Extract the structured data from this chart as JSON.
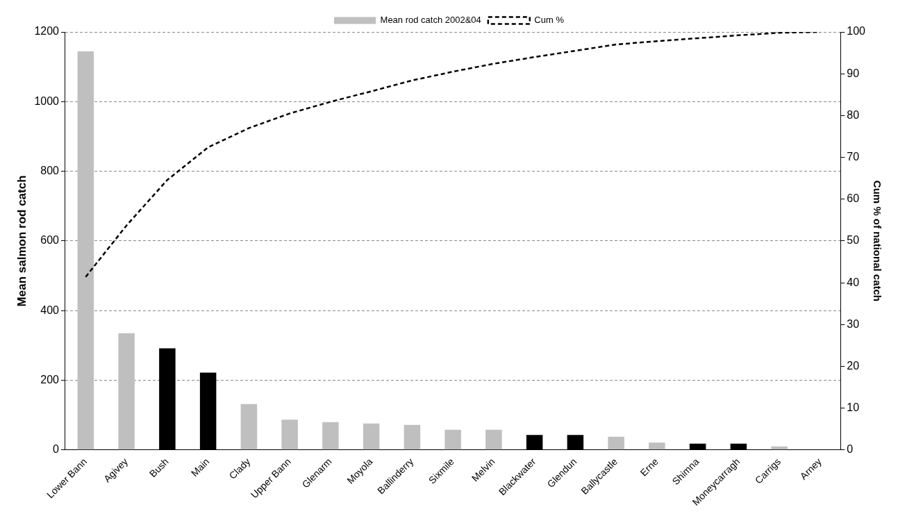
{
  "chart_data": {
    "type": "bar",
    "categories": [
      "Lower Bann",
      "Agivey",
      "Bush",
      "Main",
      "Clady",
      "Upper Bann",
      "Glenarm",
      "Moyola",
      "Ballinderry",
      "Sixmile",
      "Melvin",
      "Blackwater",
      "Glendun",
      "Ballycastle",
      "Erne",
      "Shimna",
      "Moneycarragh",
      "Carrigs",
      "Arney"
    ],
    "series": [
      {
        "name": "Mean rod catch 2002&04",
        "color": "#bfbfbf",
        "colors": [
          "#bfbfbf",
          "#bfbfbf",
          "#000000",
          "#000000",
          "#bfbfbf",
          "#bfbfbf",
          "#bfbfbf",
          "#bfbfbf",
          "#bfbfbf",
          "#bfbfbf",
          "#bfbfbf",
          "#000000",
          "#000000",
          "#bfbfbf",
          "#bfbfbf",
          "#000000",
          "#000000",
          "#bfbfbf",
          "#bfbfbf"
        ],
        "values": [
          1144,
          335,
          292,
          222,
          132,
          87,
          80,
          76,
          72,
          58,
          58,
          43,
          43,
          38,
          21,
          18,
          18,
          10,
          1
        ]
      },
      {
        "name": "Cum %",
        "type": "line",
        "axis": "y2",
        "color": "#000000",
        "line_style": "dashed",
        "marker": "none",
        "values": [
          41.4,
          53.7,
          64.6,
          72.4,
          77,
          80.5,
          83.3,
          85.8,
          88.4,
          90.5,
          92.4,
          94,
          95.5,
          97,
          97.8,
          98.5,
          99.2,
          99.8,
          100
        ]
      }
    ],
    "ylabel": "Mean salmon rod catch",
    "y2label": "Cum % of national catch",
    "ylim": [
      0,
      1200
    ],
    "yticks": [
      0,
      200,
      400,
      600,
      800,
      1000,
      1200
    ],
    "y2lim": [
      0,
      100
    ],
    "y2ticks": [
      0,
      10,
      20,
      30,
      40,
      50,
      60,
      70,
      80,
      90,
      100
    ],
    "grid": "y",
    "legend": "top"
  }
}
